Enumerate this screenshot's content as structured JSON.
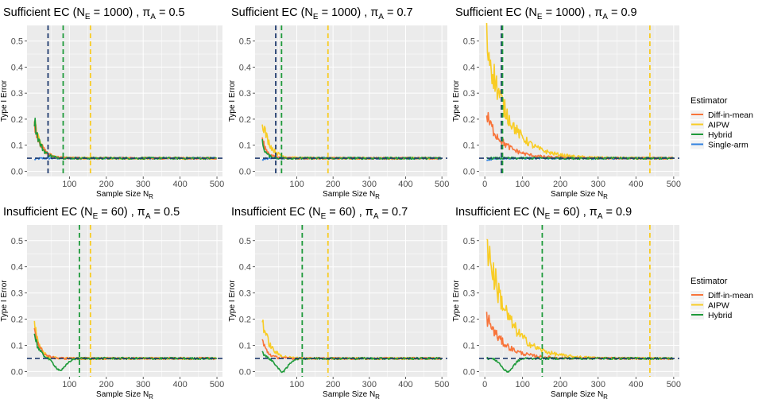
{
  "chart_data": {
    "type": "line",
    "facet_rows": [
      "Sufficient EC",
      "Insufficient EC"
    ],
    "colors": {
      "Diff-in-mean": "#F8743A",
      "AIPW": "#F8CC25",
      "Hybrid": "#1E9A3A",
      "Single-arm": "#2F80E0",
      "reference": "#1F3B6E",
      "panel_bg": "#EBEBEB"
    },
    "reference_line": 0.05,
    "legends": [
      {
        "title": "Estimator",
        "items": [
          "Diff-in-mean",
          "AIPW",
          "Hybrid",
          "Single-arm"
        ]
      },
      {
        "title": "Estimator",
        "items": [
          "Diff-in-mean",
          "AIPW",
          "Hybrid"
        ]
      }
    ],
    "panels": [
      {
        "title_main": "Sufficient EC (N",
        "title_sub": "E",
        "title_eq": " = 1000) , π",
        "title_sub2": "A",
        "title_tail": " = 0.5",
        "xlabel": "Sample Size N",
        "xlabel_sub": "R",
        "ylabel": "Type I Error",
        "xticks": [
          100,
          200,
          300,
          400,
          500
        ],
        "yticks": [
          0.0,
          0.1,
          0.2,
          0.3,
          0.4,
          0.5
        ],
        "xlim": [
          -15,
          515
        ],
        "ylim": [
          -0.02,
          0.56
        ],
        "vlines": [
          {
            "x": 42,
            "series": "reference"
          },
          {
            "x": 83,
            "series": "Hybrid"
          },
          {
            "x": 157,
            "series": "AIPW"
          }
        ],
        "series": {
          "Diff-in-mean": {
            "peak": 0.19,
            "decay": 18
          },
          "AIPW": {
            "peak": 0.19,
            "decay": 18
          },
          "Hybrid": {
            "peak": 0.2,
            "decay": 16
          },
          "Single-arm": {
            "peak": 0.045,
            "decay": 10
          }
        }
      },
      {
        "title_main": "Sufficient EC (N",
        "title_sub": "E",
        "title_eq": " = 1000) , π",
        "title_sub2": "A",
        "title_tail": " = 0.7",
        "xlabel": "Sample Size N",
        "xlabel_sub": "R",
        "ylabel": "Type I Error",
        "xticks": [
          100,
          200,
          300,
          400,
          500
        ],
        "yticks": [
          0.0,
          0.1,
          0.2,
          0.3,
          0.4,
          0.5
        ],
        "xlim": [
          -15,
          515
        ],
        "ylim": [
          -0.02,
          0.56
        ],
        "vlines": [
          {
            "x": 42,
            "series": "reference"
          },
          {
            "x": 58,
            "series": "Hybrid"
          },
          {
            "x": 186,
            "series": "AIPW"
          }
        ],
        "series": {
          "Diff-in-mean": {
            "peak": 0.12,
            "decay": 14
          },
          "AIPW": {
            "peak": 0.2,
            "decay": 20
          },
          "Hybrid": {
            "peak": 0.11,
            "decay": 10
          },
          "Single-arm": {
            "peak": 0.045,
            "decay": 10
          }
        }
      },
      {
        "title_main": "Sufficient EC (N",
        "title_sub": "E",
        "title_eq": " = 1000) , π",
        "title_sub2": "A",
        "title_tail": " = 0.9",
        "xlabel": "Sample Size N",
        "xlabel_sub": "R",
        "ylabel": "Type I Error",
        "xticks": [
          0,
          100,
          200,
          300,
          400,
          500
        ],
        "yticks": [
          0.0,
          0.1,
          0.2,
          0.3,
          0.4,
          0.5
        ],
        "xlim": [
          -15,
          515
        ],
        "ylim": [
          -0.02,
          0.56
        ],
        "vlines": [
          {
            "x": 44,
            "series": "reference"
          },
          {
            "x": 47,
            "series": "Hybrid"
          },
          {
            "x": 437,
            "series": "AIPW"
          }
        ],
        "series": {
          "Diff-in-mean": {
            "peak": 0.21,
            "decay": 45
          },
          "AIPW": {
            "peak": 0.5,
            "decay": 55
          },
          "Hybrid": {
            "peak": 0.05,
            "decay": 10
          },
          "Single-arm": {
            "peak": 0.04,
            "decay": 10
          }
        }
      },
      {
        "title_main": "Insufficient EC (N",
        "title_sub": "E",
        "title_eq": " = 60) , π",
        "title_sub2": "A",
        "title_tail": " = 0.5",
        "xlabel": "Sample Size N",
        "xlabel_sub": "R",
        "ylabel": "Type I Error",
        "xticks": [
          100,
          200,
          300,
          400,
          500
        ],
        "yticks": [
          0.0,
          0.1,
          0.2,
          0.3,
          0.4,
          0.5
        ],
        "xlim": [
          -15,
          515
        ],
        "ylim": [
          -0.02,
          0.56
        ],
        "vlines": [
          {
            "x": 127,
            "series": "Hybrid"
          },
          {
            "x": 157,
            "series": "AIPW"
          }
        ],
        "series": {
          "Diff-in-mean": {
            "peak": 0.17,
            "decay": 14
          },
          "AIPW": {
            "peak": 0.18,
            "decay": 14
          },
          "Hybrid": {
            "peak": 0.15,
            "decay": 12,
            "dip": 0.005,
            "dip_at": 75
          }
        }
      },
      {
        "title_main": "Insufficient EC (N",
        "title_sub": "E",
        "title_eq": " = 60) , π",
        "title_sub2": "A",
        "title_tail": " = 0.7",
        "xlabel": "Sample Size N",
        "xlabel_sub": "R",
        "ylabel": "Type I Error",
        "xticks": [
          100,
          200,
          300,
          400,
          500
        ],
        "yticks": [
          0.0,
          0.1,
          0.2,
          0.3,
          0.4,
          0.5
        ],
        "xlim": [
          -15,
          515
        ],
        "ylim": [
          -0.02,
          0.56
        ],
        "vlines": [
          {
            "x": 115,
            "series": "Hybrid"
          },
          {
            "x": 186,
            "series": "AIPW"
          }
        ],
        "series": {
          "Diff-in-mean": {
            "peak": 0.12,
            "decay": 14
          },
          "AIPW": {
            "peak": 0.2,
            "decay": 20
          },
          "Hybrid": {
            "peak": 0.08,
            "decay": 8,
            "dip": 0.0,
            "dip_at": 60
          }
        }
      },
      {
        "title_main": "Insufficient EC (N",
        "title_sub": "E",
        "title_eq": " = 60) , π",
        "title_sub2": "A",
        "title_tail": " = 0.9",
        "xlabel": "Sample Size N",
        "xlabel_sub": "R",
        "ylabel": "Type I Error",
        "xticks": [
          0,
          100,
          200,
          300,
          400,
          500
        ],
        "yticks": [
          0.0,
          0.1,
          0.2,
          0.3,
          0.4,
          0.5
        ],
        "xlim": [
          -15,
          515
        ],
        "ylim": [
          -0.02,
          0.56
        ],
        "vlines": [
          {
            "x": 152,
            "series": "Hybrid"
          },
          {
            "x": 437,
            "series": "AIPW"
          }
        ],
        "series": {
          "Diff-in-mean": {
            "peak": 0.21,
            "decay": 45
          },
          "AIPW": {
            "peak": 0.5,
            "decay": 55
          },
          "Hybrid": {
            "peak": 0.05,
            "decay": 10,
            "dip": 0.0,
            "dip_at": 60
          }
        }
      }
    ]
  }
}
